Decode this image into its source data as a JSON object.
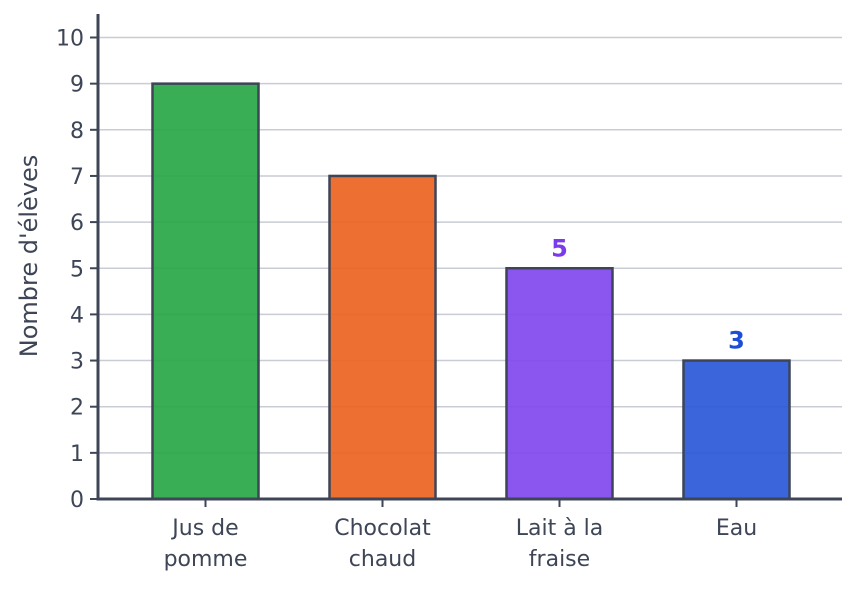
{
  "chart_data": {
    "type": "bar",
    "title": "",
    "xlabel": "",
    "ylabel": "Nombre d'élèves",
    "ylim": [
      0,
      10.5
    ],
    "yticks": [
      0,
      1,
      2,
      3,
      4,
      5,
      6,
      7,
      8,
      9,
      10
    ],
    "grid": "horizontal",
    "categories": [
      [
        "Jus de",
        "pomme"
      ],
      [
        "Chocolat",
        "chaud"
      ],
      [
        "Lait à la",
        "fraise"
      ],
      [
        "Eau"
      ]
    ],
    "values": [
      9,
      7,
      5,
      3
    ],
    "bar_colors": [
      "#28a745",
      "#eb6320",
      "#8146ef",
      "#2958d8"
    ],
    "data_labels": [
      null,
      null,
      "5",
      "3"
    ],
    "data_label_colors": [
      null,
      null,
      "#7c3aed",
      "#1d4ed8"
    ]
  },
  "style": {
    "axis_color": "#3d4557",
    "grid_color": "#c9ccd4",
    "bar_edge_color": "#3d4557"
  }
}
